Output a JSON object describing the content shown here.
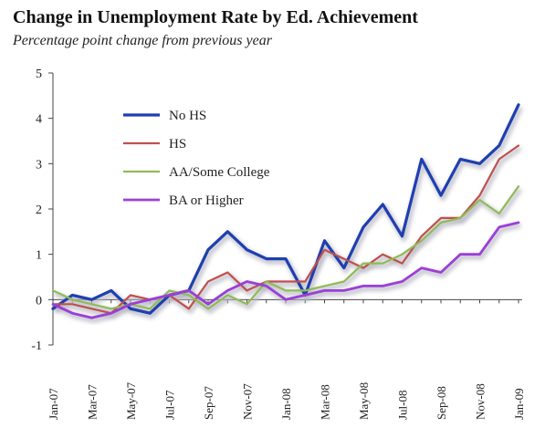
{
  "chart_data": {
    "type": "line",
    "title": "Change in Unemployment Rate by Ed. Achievement",
    "subtitle": "Percentage point change from previous year",
    "xlabel": "",
    "ylabel": "",
    "ylim": [
      -1,
      5
    ],
    "yticks": [
      -1,
      0,
      1,
      2,
      3,
      4,
      5
    ],
    "grid": false,
    "legend_position": "top-left",
    "x": [
      "Jan-07",
      "Feb-07",
      "Mar-07",
      "Apr-07",
      "May-07",
      "Jun-07",
      "Jul-07",
      "Aug-07",
      "Sep-07",
      "Oct-07",
      "Nov-07",
      "Dec-07",
      "Jan-08",
      "Feb-08",
      "Mar-08",
      "Apr-08",
      "May-08",
      "Jun-08",
      "Jul-08",
      "Aug-08",
      "Sep-08",
      "Oct-08",
      "Nov-08",
      "Dec-08",
      "Jan-09"
    ],
    "x_tick_labels": [
      "Jan-07",
      "",
      "Mar-07",
      "",
      "May-07",
      "",
      "Jul-07",
      "",
      "Sep-07",
      "",
      "Nov-07",
      "",
      "Jan-08",
      "",
      "Mar-08",
      "",
      "May-08",
      "",
      "Jul-08",
      "",
      "Sep-08",
      "",
      "Nov-08",
      "",
      "Jan-09"
    ],
    "series": [
      {
        "name": "No HS",
        "color": "#1f3fb0",
        "width": 3.2,
        "values": [
          -0.2,
          0.1,
          0.0,
          0.2,
          -0.2,
          -0.3,
          0.1,
          0.2,
          1.1,
          1.5,
          1.1,
          0.9,
          0.9,
          0.1,
          1.3,
          0.7,
          1.6,
          2.1,
          1.4,
          3.1,
          2.3,
          3.1,
          3.0,
          3.4,
          4.3
        ]
      },
      {
        "name": "HS",
        "color": "#c0504d",
        "width": 2.2,
        "values": [
          -0.1,
          -0.1,
          -0.2,
          -0.3,
          0.1,
          0.0,
          0.1,
          -0.2,
          0.4,
          0.6,
          0.2,
          0.4,
          0.4,
          0.4,
          1.1,
          0.9,
          0.7,
          1.0,
          0.8,
          1.4,
          1.8,
          1.8,
          2.3,
          3.1,
          3.4
        ]
      },
      {
        "name": "AA/Some College",
        "color": "#8fbc55",
        "width": 2.2,
        "values": [
          0.2,
          0.0,
          -0.1,
          -0.2,
          -0.1,
          -0.2,
          0.2,
          0.1,
          -0.2,
          0.1,
          -0.1,
          0.4,
          0.2,
          0.2,
          0.3,
          0.4,
          0.8,
          0.8,
          1.0,
          1.3,
          1.7,
          1.8,
          2.2,
          1.9,
          2.5
        ]
      },
      {
        "name": "BA or Higher",
        "color": "#9b3fd6",
        "width": 2.8,
        "values": [
          -0.1,
          -0.3,
          -0.4,
          -0.3,
          -0.1,
          0.0,
          0.1,
          0.2,
          -0.1,
          0.2,
          0.4,
          0.3,
          0.0,
          0.1,
          0.2,
          0.2,
          0.3,
          0.3,
          0.4,
          0.7,
          0.6,
          1.0,
          1.0,
          1.6,
          1.7
        ]
      }
    ]
  }
}
